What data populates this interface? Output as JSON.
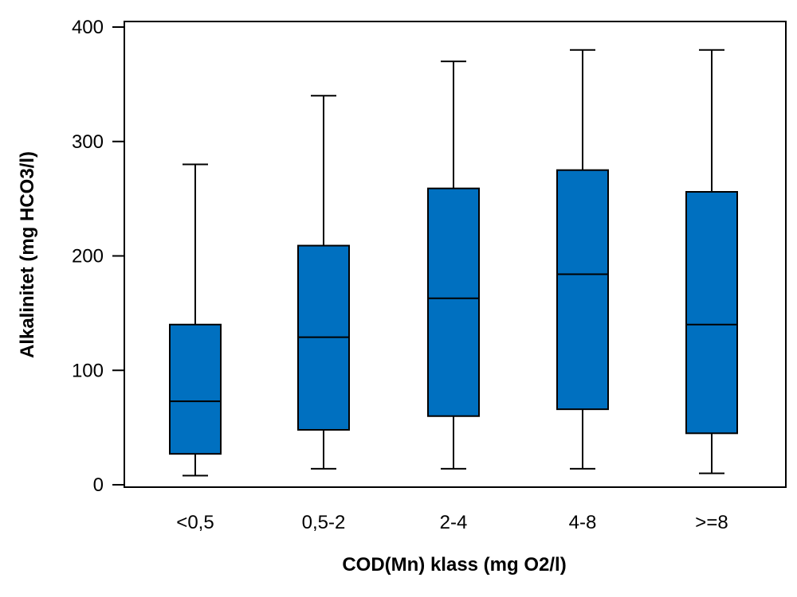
{
  "chart_data": {
    "type": "boxplot",
    "title": "",
    "xlabel": "COD(Mn) klass (mg O2/l)",
    "ylabel": "Alkalinitet (mg HCO3/l)",
    "ylim": [
      0,
      400
    ],
    "yticks": [
      0,
      100,
      200,
      300,
      400
    ],
    "yticklabels": [
      "0",
      "100",
      "200",
      "300",
      "400"
    ],
    "grid": false,
    "legend": "none",
    "box_color": "#0070C0",
    "categories": [
      "<0,5",
      "0,5-2",
      "2-4",
      "4-8",
      ">=8"
    ],
    "series": [
      {
        "whisker_low": [
          8,
          14,
          14,
          14,
          10
        ],
        "q1": [
          27,
          48,
          60,
          66,
          45
        ],
        "median": [
          73,
          129,
          163,
          184,
          140
        ],
        "q3": [
          140,
          209,
          259,
          275,
          256
        ],
        "whisker_high": [
          280,
          340,
          370,
          380,
          380
        ]
      }
    ]
  }
}
